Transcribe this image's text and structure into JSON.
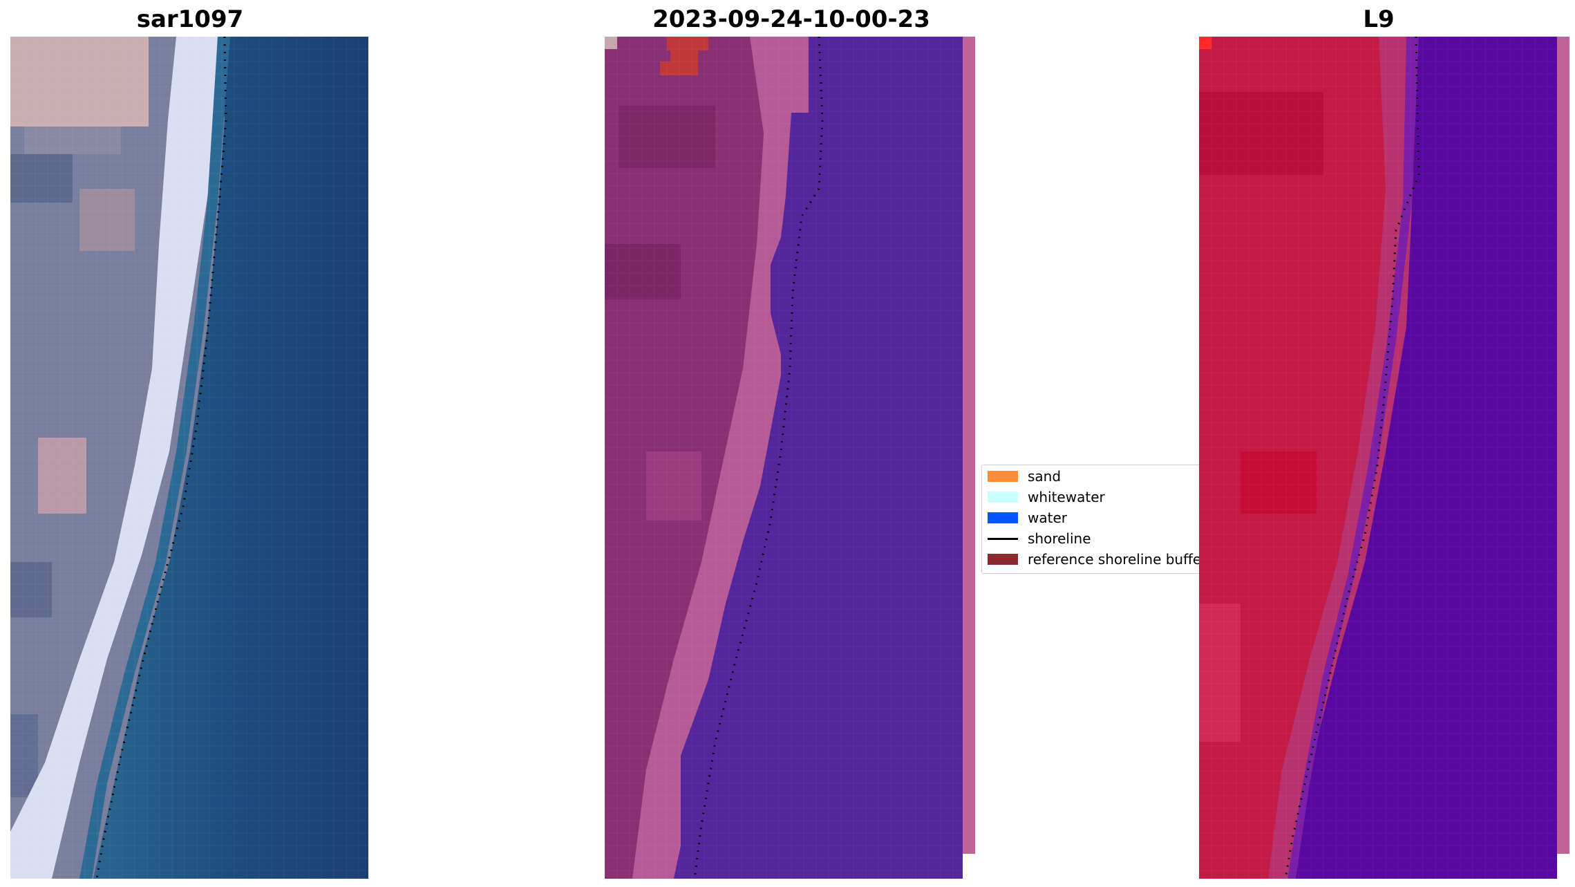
{
  "panels": [
    {
      "title": "sar1097",
      "kind": "rgb",
      "icon": "rgb-satellite-image"
    },
    {
      "title": "2023-09-24-10-00-23",
      "kind": "classified",
      "icon": "classified-satellite-image"
    },
    {
      "title": "L9",
      "kind": "mndwi",
      "icon": "index-satellite-image"
    }
  ],
  "legend": {
    "placement": "center",
    "items": [
      {
        "label": "sand",
        "color": "#ff8c3a",
        "kind": "patch"
      },
      {
        "label": "whitewater",
        "color": "#c8ffff",
        "kind": "patch"
      },
      {
        "label": "water",
        "color": "#0055ff",
        "kind": "patch"
      },
      {
        "label": "shoreline",
        "color": "#000000",
        "kind": "line"
      },
      {
        "label": "reference shoreline buffer",
        "color": "#8b2a2e",
        "kind": "patch"
      }
    ]
  },
  "colors": {
    "rgb_ocean": "#1f4e80",
    "rgb_whitewater": "#dfe4f5",
    "rgb_land": "#7b7f9f",
    "classified_water": "#55239a",
    "classified_land": "#a24a86",
    "index_water": "#57089e",
    "index_land": "#c0153e",
    "shoreline": "#000000"
  }
}
